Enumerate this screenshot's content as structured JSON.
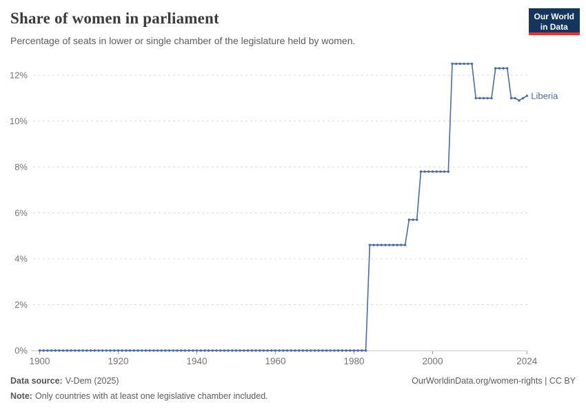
{
  "header": {
    "title": "Share of women in parliament",
    "subtitle": "Percentage of seats in lower or single chamber of the legislature held by women.",
    "logo": {
      "line1": "Our World",
      "line2": "in Data"
    }
  },
  "chart_data": {
    "type": "line",
    "title": "Share of women in parliament",
    "xlabel": "",
    "ylabel": "",
    "grid": true,
    "legend_position": "end-of-line-label",
    "x": {
      "min": 1900,
      "max": 2024,
      "ticks": [
        1900,
        1920,
        1940,
        1960,
        1980,
        2000,
        2024
      ],
      "tick_labels": [
        "1900",
        "1920",
        "1940",
        "1960",
        "1980",
        "2000",
        "2024"
      ]
    },
    "y": {
      "min": 0,
      "max": 12.6,
      "ticks": [
        0,
        2,
        4,
        6,
        8,
        10,
        12
      ],
      "tick_labels": [
        "0%",
        "2%",
        "4%",
        "6%",
        "8%",
        "10%",
        "12%"
      ]
    },
    "series": [
      {
        "name": "Liberia",
        "color": "#4c6a9c",
        "step_segments": [
          {
            "from": 1900,
            "to": 1983,
            "value": 0.0
          },
          {
            "from": 1984,
            "to": 1993,
            "value": 4.6
          },
          {
            "from": 1994,
            "to": 1996,
            "value": 5.7
          },
          {
            "from": 1997,
            "to": 2004,
            "value": 7.8
          },
          {
            "from": 2005,
            "to": 2010,
            "value": 12.5
          },
          {
            "from": 2011,
            "to": 2015,
            "value": 11.0
          },
          {
            "from": 2016,
            "to": 2019,
            "value": 12.3
          },
          {
            "from": 2020,
            "to": 2024,
            "value": 11.0
          }
        ],
        "year_overrides": {
          "2022": 10.9,
          "2024": 11.1
        }
      }
    ]
  },
  "footer": {
    "source_label": "Data source:",
    "source_value": "V-Dem (2025)",
    "link": "OurWorldinData.org/women-rights | CC BY",
    "note_label": "Note:",
    "note_value": "Only countries with at least one legislative chamber included."
  },
  "colors": {
    "line": "#4c6a9c",
    "grid": "#dcdcdc",
    "axis_baseline": "#c8c8c8",
    "tick_mark": "#a5a5a5",
    "tick_text": "#737373",
    "logo_bg": "#14355c",
    "logo_bar": "#dc3a30"
  }
}
